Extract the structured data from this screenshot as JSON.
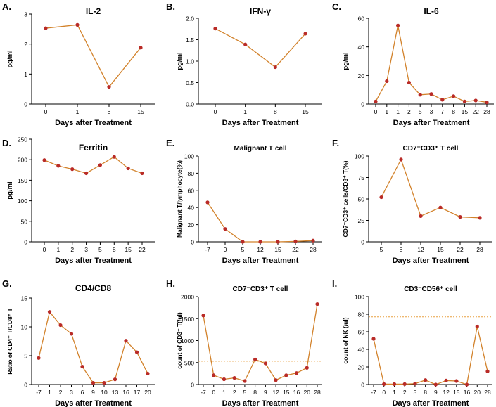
{
  "colors": {
    "line": "#D2822B",
    "marker": "#B92B27",
    "axis": "#000000",
    "ref": "#E8A040"
  },
  "chart_data": [
    {
      "panel": "A.",
      "type": "line",
      "title": "IL-2",
      "xlabel": "Days after Treatment",
      "ylabel": "pg/ml",
      "categories": [
        "0",
        "1",
        "8",
        "15"
      ],
      "values": [
        2.53,
        2.64,
        0.57,
        1.88
      ],
      "ylim": [
        0,
        3
      ],
      "yticks": [
        "0",
        "1",
        "2",
        "3"
      ],
      "ytick_values": [
        0,
        1,
        2,
        3
      ]
    },
    {
      "panel": "B.",
      "type": "line",
      "title": "IFN-γ",
      "xlabel": "Days after Treatment",
      "ylabel": "pg/ml",
      "categories": [
        "0",
        "1",
        "8",
        "15"
      ],
      "values": [
        1.76,
        1.39,
        0.86,
        1.64
      ],
      "ylim": [
        0,
        2.0
      ],
      "yticks": [
        "0.0",
        "0.5",
        "1.0",
        "1.5",
        "2.0"
      ],
      "ytick_values": [
        0,
        0.5,
        1.0,
        1.5,
        2.0
      ]
    },
    {
      "panel": "C.",
      "type": "line",
      "title": "IL-6",
      "xlabel": "Days after Treatment",
      "ylabel": "pg/ml",
      "categories": [
        "0",
        "1",
        "1",
        "2",
        "5",
        "3",
        "7",
        "8",
        "15",
        "22",
        "28"
      ],
      "values": [
        1.8,
        16,
        55,
        15,
        6.5,
        7,
        3,
        5.5,
        1.8,
        2.5,
        1.2
      ],
      "ylim": [
        0,
        60
      ],
      "yticks": [
        "0",
        "20",
        "40",
        "60"
      ],
      "ytick_values": [
        0,
        20,
        40,
        60
      ]
    },
    {
      "panel": "D.",
      "type": "line",
      "title": "Ferritin",
      "xlabel": "Days after Treatment",
      "ylabel": "pg/ml",
      "categories": [
        "0",
        "1",
        "2",
        "3",
        "5",
        "8",
        "15",
        "22"
      ],
      "values": [
        199,
        185,
        177,
        167,
        187,
        207,
        179,
        167
      ],
      "ylim": [
        0,
        250
      ],
      "yticks": [
        "0",
        "50",
        "100",
        "150",
        "200",
        "250"
      ],
      "ytick_values": [
        0,
        50,
        100,
        150,
        200,
        250
      ]
    },
    {
      "panel": "E.",
      "type": "line",
      "title": "Malignant T cell",
      "xlabel": "Days after Treatment",
      "ylabel": "Malignant T/lymphocyte(%)",
      "categories": [
        "-7",
        "0",
        "5",
        "12",
        "15",
        "22",
        "28"
      ],
      "values": [
        46,
        15,
        0,
        0,
        0,
        0.5,
        1.5
      ],
      "ylim": [
        0,
        100
      ],
      "yticks": [
        "0",
        "20",
        "40",
        "60",
        "80",
        "100"
      ],
      "ytick_values": [
        0,
        20,
        40,
        60,
        80,
        100
      ]
    },
    {
      "panel": "F.",
      "type": "line",
      "title": "CD7⁻CD3⁺ T cell",
      "xlabel": "Days after Treatment",
      "ylabel": "CD7⁻CD3⁺ cells/CD3⁺ T(%)",
      "categories": [
        "5",
        "8",
        "12",
        "15",
        "22",
        "28"
      ],
      "values": [
        52,
        96,
        30,
        40,
        29,
        28
      ],
      "ylim": [
        0,
        100
      ],
      "yticks": [
        "0",
        "25",
        "50",
        "75",
        "100"
      ],
      "ytick_values": [
        0,
        25,
        50,
        75,
        100
      ]
    },
    {
      "panel": "G.",
      "type": "line",
      "title": "CD4/CD8",
      "xlabel": "Days after Treatment",
      "ylabel": "Ratio of CD4⁺ T/CD8⁺ T",
      "categories": [
        "-7",
        "1",
        "2",
        "3",
        "6",
        "9",
        "10",
        "13",
        "16",
        "17",
        "20"
      ],
      "values": [
        4.6,
        12.6,
        10.3,
        8.8,
        3.1,
        0.3,
        0.3,
        0.9,
        7.6,
        5.6,
        1.9
      ],
      "ylim": [
        0,
        15
      ],
      "yticks": [
        "0",
        "5",
        "10",
        "15"
      ],
      "ytick_values": [
        0,
        5,
        10,
        15
      ]
    },
    {
      "panel": "H.",
      "type": "line",
      "title": "CD7⁻CD3⁺ T cell",
      "xlabel": "Days after Treatment",
      "ylabel": "count of CD3⁺ T(/ul)",
      "categories": [
        "-7",
        "0",
        "1",
        "2",
        "5",
        "8",
        "9",
        "12",
        "15",
        "16",
        "20",
        "28"
      ],
      "values": [
        1570,
        210,
        120,
        150,
        80,
        570,
        480,
        100,
        210,
        260,
        380,
        1830
      ],
      "ylim": [
        0,
        2000
      ],
      "yticks": [
        "0",
        "500",
        "1000",
        "1500",
        "2000"
      ],
      "ytick_values": [
        0,
        500,
        1000,
        1500,
        2000
      ],
      "reference_line": 530
    },
    {
      "panel": "I.",
      "type": "line",
      "title": "CD3⁻CD56⁺ cell",
      "xlabel": "Days after Treatment",
      "ylabel": "count of NK (/ul)",
      "categories": [
        "-7",
        "0",
        "1",
        "2",
        "5",
        "8",
        "9",
        "12",
        "15",
        "16",
        "20",
        "28"
      ],
      "values": [
        52,
        0.5,
        0.5,
        0.5,
        1,
        5,
        0,
        4.5,
        4,
        0,
        66,
        15
      ],
      "ylim": [
        0,
        100
      ],
      "yticks": [
        "0",
        "20",
        "40",
        "60",
        "80",
        "100"
      ],
      "ytick_values": [
        0,
        20,
        40,
        60,
        80,
        100
      ],
      "reference_line": 77
    }
  ]
}
